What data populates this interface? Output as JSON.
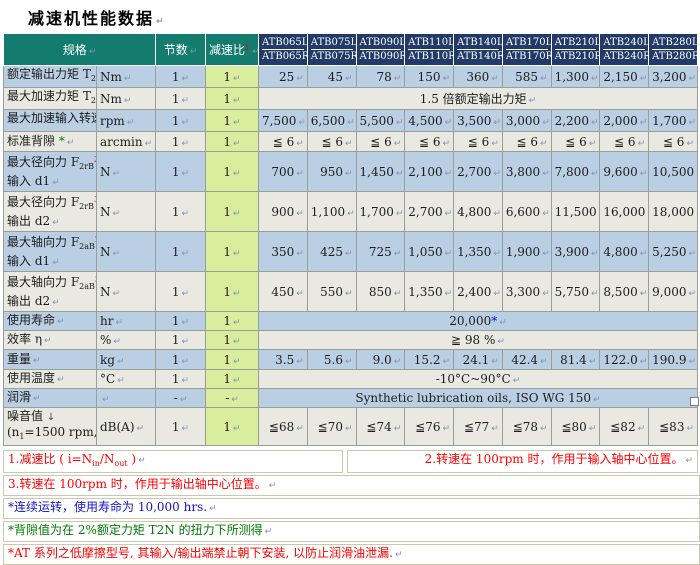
{
  "title": "减速机性能数据",
  "marks": {
    "paragraph": "↵",
    "line_break": "↓"
  },
  "colors": {
    "header_teal": "#137C6E",
    "header_navy": "#223A67",
    "row_blue": "#BACFE3",
    "row_gray": "#E9E9E1",
    "ratio_green": "#D9ED9D",
    "note_red": "#FF0000",
    "note_green": "#007A00",
    "note_blue": "#1414CC"
  },
  "table": {
    "header": {
      "spec": "规格",
      "sections": "节数",
      "ratio": "减速比",
      "ratio_ref": "1",
      "models": [
        {
          "top": "ATB065L▮",
          "bottom": "ATB065R▮"
        },
        {
          "top": "ATB075L▮",
          "bottom": "ATB075R▮"
        },
        {
          "top": "ATB090L▮",
          "bottom": "ATB090R▮"
        },
        {
          "top": "ATB110L▮",
          "bottom": "ATB110R▮"
        },
        {
          "top": "ATB140L▮",
          "bottom": "ATB140R▮"
        },
        {
          "top": "ATB170L▮",
          "bottom": "ATB170R▮"
        },
        {
          "top": "ATB210L▮",
          "bottom": "ATB210R▮"
        },
        {
          "top": "ATB240L▮",
          "bottom": "ATB240R▮"
        },
        {
          "top": "ATB280L▮",
          "bottom": "ATB280R▮"
        }
      ]
    },
    "rows": [
      {
        "name": "rated-output-torque",
        "label": [
          {
            "t": "额定输出力矩 T"
          },
          {
            "t": "2N",
            "sub": true
          }
        ],
        "unit": "Nm",
        "sections": "1",
        "ratio": "1",
        "values": [
          "25",
          "45",
          "78",
          "150",
          "360",
          "585",
          "1,300",
          "2,150",
          "3,200"
        ]
      },
      {
        "name": "max-acceleration-torque",
        "label": [
          {
            "t": "最大加速力矩 T"
          },
          {
            "t": "2B",
            "sub": true
          }
        ],
        "unit": "Nm",
        "sections": "1",
        "ratio": "1",
        "merged": [
          {
            "t": "1.5 倍额定输出力矩"
          }
        ]
      },
      {
        "name": "max-acceleration-input-speed",
        "label": [
          {
            "t": "最大加速输入转速 n"
          },
          {
            "t": "1B",
            "sub": true
          }
        ],
        "unit": "rpm",
        "sections": "1",
        "ratio": "1",
        "values": [
          "7,500",
          "6,500",
          "5,500",
          "4,500",
          "3,500",
          "3,000",
          "2,200",
          "2,000",
          "1,700"
        ]
      },
      {
        "name": "standard-backlash",
        "label": [
          {
            "t": "标准背隙 "
          },
          {
            "t": "*",
            "c": "green"
          }
        ],
        "unit": "arcmin",
        "sections": "1",
        "ratio": "1",
        "values": [
          "≦ 6",
          "≦ 6",
          "≦ 6",
          "≦ 6",
          "≦ 6",
          "≦ 6",
          "≦ 6",
          "≦ 6",
          "≦ 6"
        ]
      },
      {
        "name": "max-radial-force-input",
        "label": [
          {
            "t": "最大径向力 F"
          },
          {
            "t": "2rB",
            "sub": true
          },
          {
            "t": "2",
            "sup": true,
            "c": "red"
          },
          {
            "t": "↓",
            "c": "mark"
          }
        ],
        "label2": [
          {
            "t": "输入 d1"
          }
        ],
        "unit": "N",
        "sections": "1",
        "ratio": "1",
        "values": [
          "700",
          "950",
          "1,450",
          "2,100",
          "2,700",
          "3,800",
          "7,800",
          "9,600",
          "10,500"
        ]
      },
      {
        "name": "max-radial-force-output",
        "label": [
          {
            "t": "最大径向力 F"
          },
          {
            "t": "2rB",
            "sub": true
          },
          {
            "t": "3",
            "sup": true,
            "c": "red"
          },
          {
            "t": "↓",
            "c": "mark"
          }
        ],
        "label2": [
          {
            "t": "输出 d2"
          }
        ],
        "unit": "N",
        "sections": "1",
        "ratio": "1",
        "values": [
          "900",
          "1,100",
          "1,700",
          "2,700",
          "4,800",
          "6,600",
          "11,500",
          "16,000",
          "18,000"
        ]
      },
      {
        "name": "max-axial-force-input",
        "label": [
          {
            "t": "最大轴向力 F"
          },
          {
            "t": "2aB",
            "sub": true
          },
          {
            "t": "2",
            "sup": true,
            "c": "red"
          },
          {
            "t": "↓",
            "c": "mark"
          }
        ],
        "label2": [
          {
            "t": "输入 d1"
          }
        ],
        "unit": "N",
        "sections": "1",
        "ratio": "1",
        "values": [
          "350",
          "425",
          "725",
          "1,050",
          "1,350",
          "1,900",
          "3,900",
          "4,800",
          "5,250"
        ]
      },
      {
        "name": "max-axial-force-output",
        "label": [
          {
            "t": "最大轴向力 F"
          },
          {
            "t": "2aB",
            "sub": true
          },
          {
            "t": "3",
            "sup": true,
            "c": "red"
          },
          {
            "t": "↓",
            "c": "mark"
          }
        ],
        "label2": [
          {
            "t": "输出 d2"
          }
        ],
        "unit": "N",
        "sections": "1",
        "ratio": "1",
        "values": [
          "450",
          "550",
          "850",
          "1,350",
          "2,400",
          "3,300",
          "5,750",
          "8,500",
          "9,000"
        ]
      },
      {
        "name": "service-life",
        "label": [
          {
            "t": "使用寿命"
          }
        ],
        "unit": "hr",
        "sections": "1",
        "ratio": "1",
        "merged": [
          {
            "t": "20,000"
          },
          {
            "t": "*",
            "c": "blue"
          }
        ]
      },
      {
        "name": "efficiency",
        "label": [
          {
            "t": "效率 η"
          }
        ],
        "unit": "%",
        "sections": "1",
        "ratio": "1",
        "merged": [
          {
            "t": "≧ 98 %"
          }
        ]
      },
      {
        "name": "weight",
        "label": [
          {
            "t": "重量"
          }
        ],
        "unit": "kg",
        "sections": "1",
        "ratio": "1",
        "values": [
          "3.5",
          "5.6",
          "9.0",
          "15.2",
          "24.1",
          "42.4",
          "81.4",
          "122.0",
          "190.9"
        ]
      },
      {
        "name": "operating-temperature",
        "label": [
          {
            "t": "使用温度"
          }
        ],
        "unit": "°C",
        "sections": "1",
        "ratio": "1",
        "merged": [
          {
            "t": "-10°C~90°C"
          }
        ]
      },
      {
        "name": "lubrication",
        "label": [
          {
            "t": "润滑"
          }
        ],
        "unit": "",
        "sections": "-",
        "ratio": "-",
        "merged": [
          {
            "t": "Synthetic lubrication oils, ISO WG 150"
          }
        ]
      },
      {
        "name": "noise-level",
        "label": [
          {
            "t": "噪音值 "
          },
          {
            "t": "↓",
            "c": "mark"
          }
        ],
        "label2": [
          {
            "t": "(n"
          },
          {
            "t": "1",
            "sub": true
          },
          {
            "t": "=1500 rpm, 无负载)"
          }
        ],
        "unit": "dB(A)",
        "sections": "1",
        "ratio": "1",
        "values": [
          "≦68",
          "≦70",
          "≦74",
          "≦76",
          "≦77",
          "≦78",
          "≦80",
          "≦82",
          "≦83"
        ]
      }
    ]
  },
  "notes": [
    {
      "name": "note-reduction-ratio",
      "color": "red",
      "layout": "left",
      "parts": [
        {
          "t": "1.减速比 ( i=N"
        },
        {
          "t": "in",
          "sub": true
        },
        {
          "t": "/N"
        },
        {
          "t": "out",
          "sub": true
        },
        {
          "t": " )"
        }
      ]
    },
    {
      "name": "note-input-shaft",
      "color": "red",
      "layout": "right",
      "parts": [
        {
          "t": "2.转速在 100rpm 时，作用于输入轴中心位置。"
        }
      ]
    },
    {
      "name": "note-output-shaft",
      "color": "red",
      "layout": "full",
      "parts": [
        {
          "t": "3.转速在 100rpm 时，作用于输出轴中心位置。"
        }
      ]
    },
    {
      "name": "note-service-life",
      "color": "blue",
      "layout": "full",
      "parts": [
        {
          "t": "*连续运转，使用寿命为 10,000 hrs."
        }
      ]
    },
    {
      "name": "note-backlash",
      "color": "green",
      "layout": "full",
      "parts": [
        {
          "t": "*背隙值为在 2%额定力矩 T2N 的扭力下所测得"
        }
      ]
    },
    {
      "name": "note-at-series",
      "color": "red",
      "layout": "full",
      "parts": [
        {
          "t": "*AT 系列之低摩擦型号, 其输入/输出端禁止朝下安装, 以防止润滑油泄漏."
        }
      ]
    }
  ]
}
